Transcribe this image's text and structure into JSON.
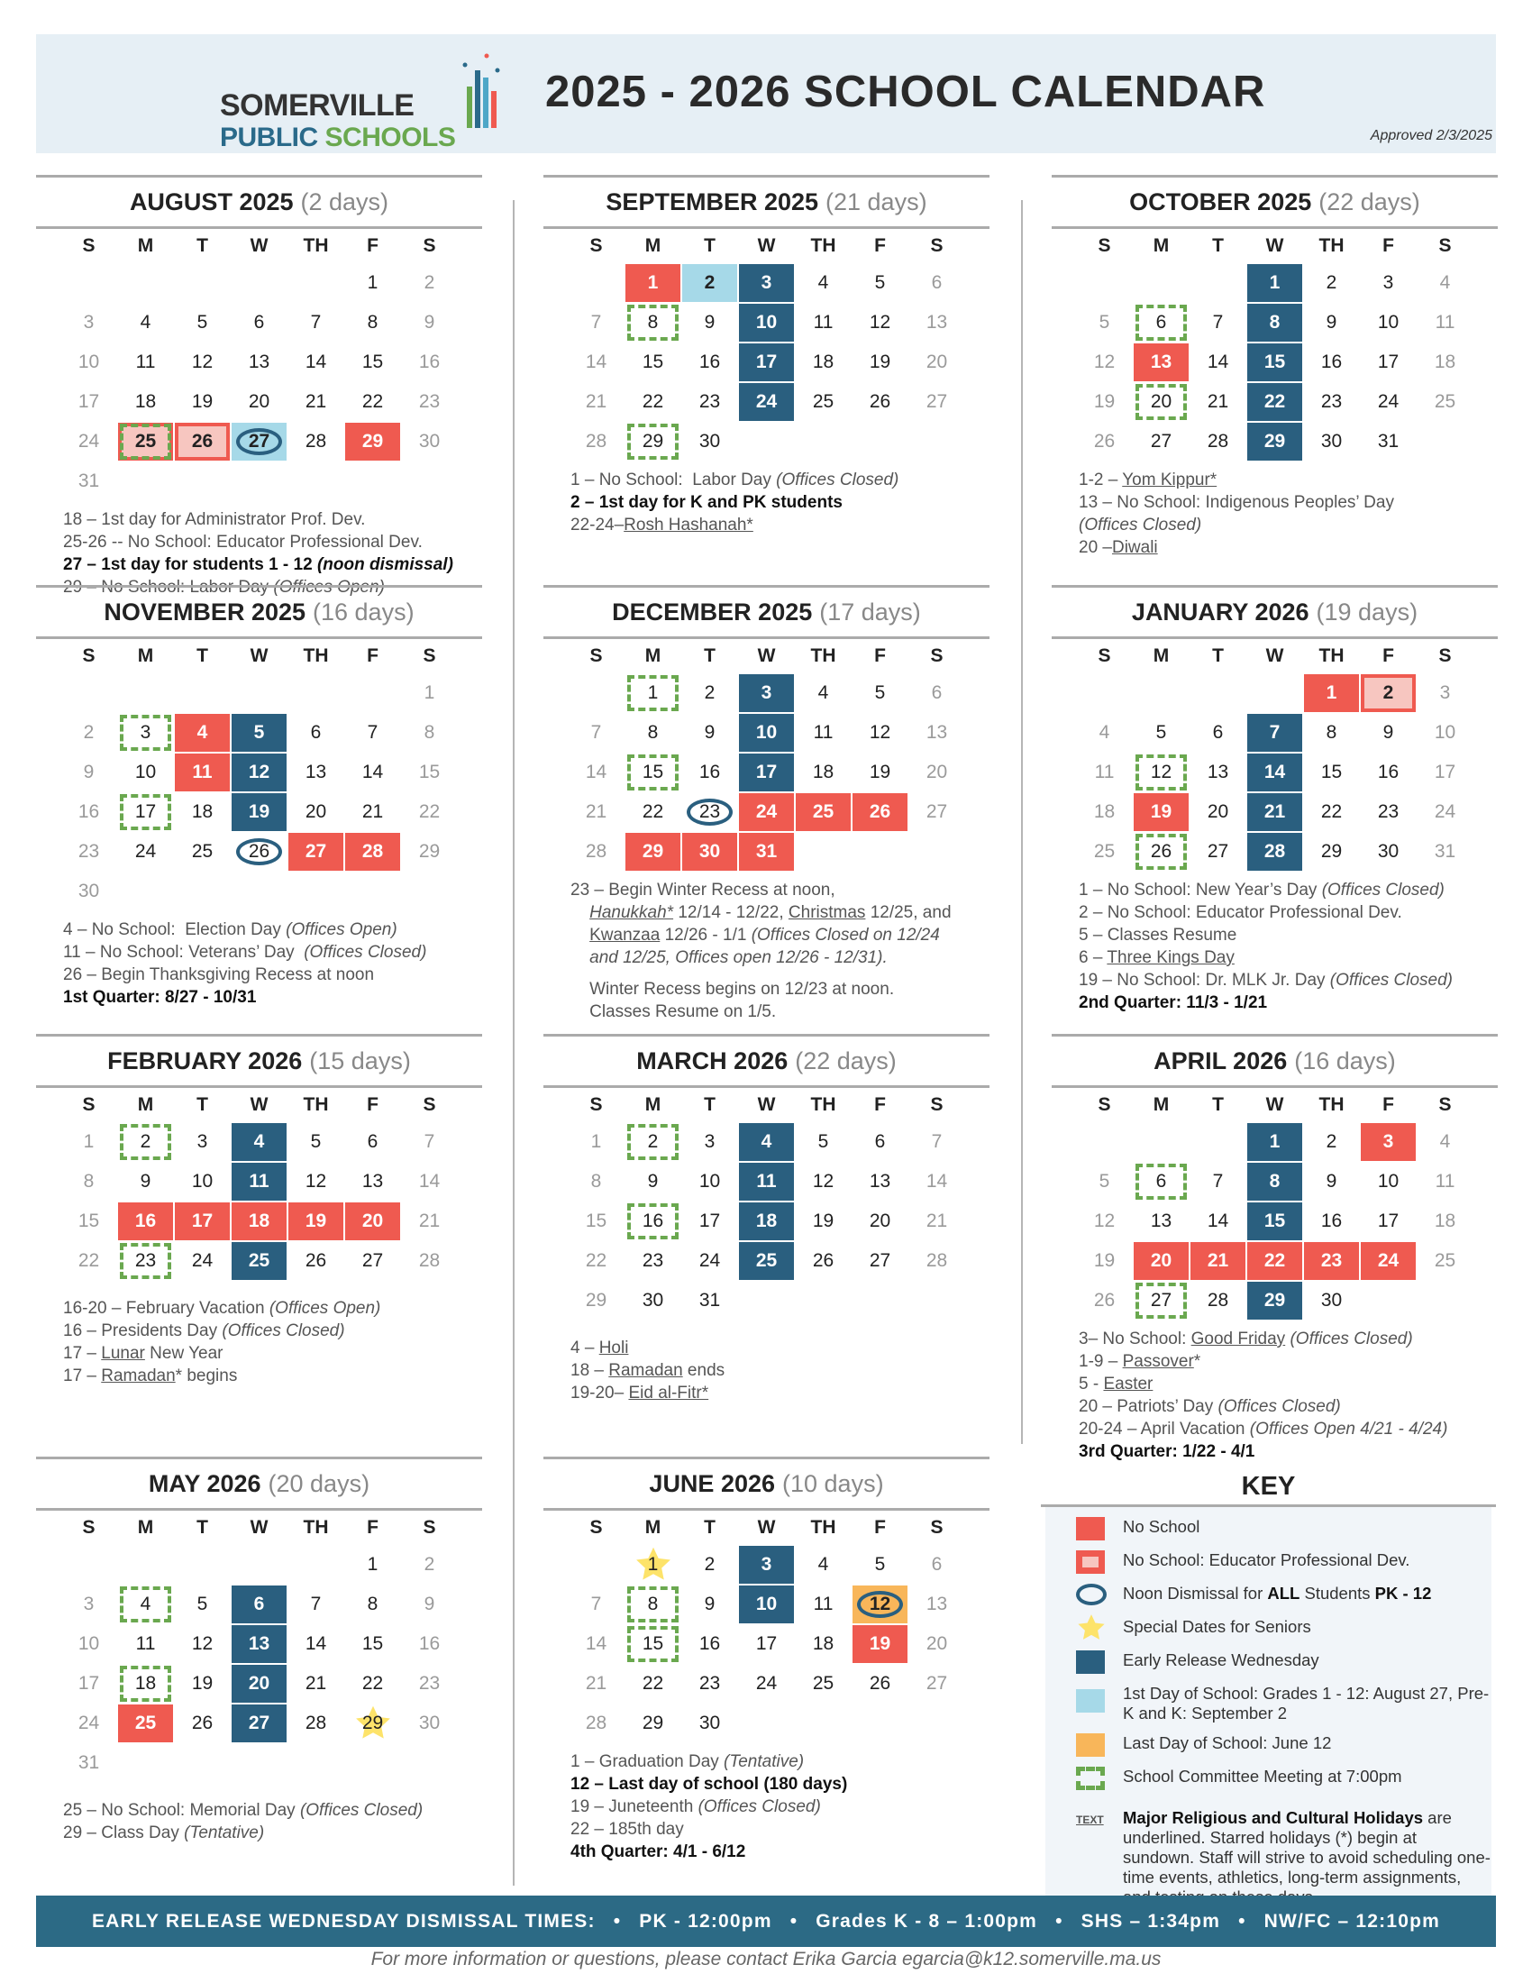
{
  "header": {
    "logo_line1": "SOMERVILLE",
    "logo_public": "PUBLIC",
    "logo_schools": "SCHOOLS",
    "title": "2025 - 2026 SCHOOL CALENDAR",
    "approved": "Approved 2/3/2025"
  },
  "weekdays": [
    "S",
    "M",
    "T",
    "W",
    "TH",
    "F",
    "S"
  ],
  "colors": {
    "no_school": "#ef5a50",
    "pd": "#f7c6c0",
    "early_release": "#2a5f7f",
    "first_day": "#a6d9e8",
    "last_day": "#f8b65a",
    "committee": "#6aa84f",
    "star": "#fde36a"
  },
  "months": [
    {
      "name": "AUGUST 2025",
      "days": "(2 days)",
      "start": 5,
      "length": 31,
      "marks": {
        "25": [
          "pd",
          "sc"
        ],
        "26": [
          "pd"
        ],
        "27": [
          "first",
          "ring"
        ],
        "29": [
          "no"
        ]
      },
      "notes": [
        [
          [
            "18 – 1st day for Administrator Prof. Dev.",
            ""
          ]
        ],
        [
          [
            "25-26 -- No School: Educator Professional Dev.",
            ""
          ]
        ],
        [
          [
            "27 – 1st day for students 1 - 12 ",
            "b"
          ],
          [
            "(noon dismissal)",
            "b i"
          ]
        ],
        [
          [
            "29 – No School: Labor Day ",
            ""
          ],
          [
            "(Offices Open)",
            "i"
          ]
        ]
      ]
    },
    {
      "name": "SEPTEMBER 2025",
      "days": "(21 days)",
      "start": 1,
      "length": 30,
      "marks": {
        "1": [
          "no"
        ],
        "2": [
          "first"
        ],
        "3": [
          "er"
        ],
        "10": [
          "er"
        ],
        "17": [
          "er"
        ],
        "24": [
          "er"
        ],
        "8": [
          "sc"
        ],
        "29": [
          "sc"
        ]
      },
      "notes": [
        [
          [
            "1 – No School:  Labor Day ",
            ""
          ],
          [
            "(Offices Closed)",
            "i"
          ]
        ],
        [
          [
            "2 – 1st day for K and PK students",
            "b"
          ]
        ],
        [
          [
            "22-24–",
            ""
          ],
          [
            "Rosh Hashanah*",
            "u"
          ]
        ]
      ]
    },
    {
      "name": "OCTOBER 2025",
      "days": "(22 days)",
      "start": 3,
      "length": 31,
      "marks": {
        "1": [
          "er"
        ],
        "8": [
          "er"
        ],
        "15": [
          "er"
        ],
        "22": [
          "er"
        ],
        "29": [
          "er"
        ],
        "6": [
          "sc"
        ],
        "13": [
          "no"
        ],
        "20": [
          "sc"
        ]
      },
      "notes": [
        [
          [
            "1-2 – ",
            ""
          ],
          [
            "Yom Kippur*",
            "u"
          ]
        ],
        [
          [
            "13 – No School: Indigenous Peoples’ Day",
            ""
          ]
        ],
        [
          [
            "(Offices Closed)",
            "i"
          ]
        ],
        [
          [
            "20 –",
            ""
          ],
          [
            "Diwali",
            "u"
          ]
        ]
      ]
    },
    {
      "name": "NOVEMBER 2025",
      "days": "(16 days)",
      "start": 6,
      "length": 30,
      "marks": {
        "3": [
          "sc"
        ],
        "4": [
          "no"
        ],
        "5": [
          "er"
        ],
        "11": [
          "no"
        ],
        "12": [
          "er"
        ],
        "17": [
          "sc"
        ],
        "19": [
          "er"
        ],
        "26": [
          "ring"
        ],
        "27": [
          "no"
        ],
        "28": [
          "no"
        ]
      },
      "notes": [
        [
          [
            "4 – No School:  Election Day ",
            ""
          ],
          [
            "(Offices Open)",
            "i"
          ]
        ],
        [
          [
            "11 – No School: Veterans’ Day  ",
            ""
          ],
          [
            "(Offices Closed)",
            "i"
          ]
        ],
        [
          [
            "26 – Begin Thanksgiving Recess at noon",
            ""
          ]
        ],
        [
          [
            "1st Quarter: 8/27 - 10/31",
            "b"
          ]
        ]
      ]
    },
    {
      "name": "DECEMBER 2025",
      "days": "(17 days)",
      "start": 1,
      "length": 31,
      "marks": {
        "1": [
          "sc"
        ],
        "3": [
          "er"
        ],
        "10": [
          "er"
        ],
        "17": [
          "er"
        ],
        "15": [
          "sc"
        ],
        "23": [
          "ring"
        ],
        "24": [
          "no"
        ],
        "25": [
          "no"
        ],
        "26": [
          "no"
        ],
        "29": [
          "no"
        ],
        "30": [
          "no"
        ],
        "31": [
          "no"
        ]
      },
      "notes": [
        [
          [
            "23 – Begin Winter Recess at noon,",
            ""
          ]
        ],
        [
          [
            "    ",
            ""
          ],
          [
            "Hanukkah*",
            "u i"
          ],
          [
            " 12/14 - 12/22, ",
            ""
          ],
          [
            "Christmas",
            "u"
          ],
          [
            " 12/25, and",
            ""
          ]
        ],
        [
          [
            "    ",
            ""
          ],
          [
            "Kwanzaa",
            "u"
          ],
          [
            " 12/26 - 1/1 ",
            ""
          ],
          [
            "(Offices Closed on 12/24",
            "i"
          ]
        ],
        [
          [
            "    ",
            ""
          ],
          [
            "and 12/25, Offices open 12/26 - 12/31).",
            "i"
          ]
        ],
        [
          [
            "",
            ""
          ]
        ],
        [
          [
            "    Winter Recess begins on 12/23 at noon.",
            ""
          ]
        ],
        [
          [
            "    Classes Resume on 1/5.",
            ""
          ]
        ]
      ]
    },
    {
      "name": "JANUARY 2026",
      "days": "(19 days)",
      "start": 4,
      "length": 31,
      "marks": {
        "1": [
          "no"
        ],
        "2": [
          "pd"
        ],
        "7": [
          "er"
        ],
        "14": [
          "er"
        ],
        "21": [
          "er"
        ],
        "28": [
          "er"
        ],
        "12": [
          "sc"
        ],
        "19": [
          "no"
        ],
        "26": [
          "sc"
        ]
      },
      "notes": [
        [
          [
            "1 – No School: New Year’s Day ",
            ""
          ],
          [
            "(Offices Closed)",
            "i"
          ]
        ],
        [
          [
            "2 – No School: Educator Professional Dev.",
            ""
          ]
        ],
        [
          [
            "5 – Classes Resume",
            ""
          ]
        ],
        [
          [
            "6 – ",
            ""
          ],
          [
            "Three Kings Day",
            "u"
          ]
        ],
        [
          [
            "19 – No School: Dr. MLK Jr. Day ",
            ""
          ],
          [
            "(Offices Closed)",
            "i"
          ]
        ],
        [
          [
            "2nd Quarter: 11/3 - 1/21",
            "b"
          ]
        ]
      ]
    },
    {
      "name": "FEBRUARY 2026",
      "days": "(15 days)",
      "start": 0,
      "length": 28,
      "marks": {
        "2": [
          "sc"
        ],
        "4": [
          "er"
        ],
        "11": [
          "er"
        ],
        "25": [
          "er"
        ],
        "16": [
          "no"
        ],
        "17": [
          "no"
        ],
        "18": [
          "no"
        ],
        "19": [
          "no"
        ],
        "20": [
          "no"
        ],
        "23": [
          "sc"
        ]
      },
      "notes": [
        [
          [
            "",
            ""
          ]
        ],
        [
          [
            "16-20 – February Vacation ",
            ""
          ],
          [
            "(Offices Open)",
            "i"
          ]
        ],
        [
          [
            "16 – Presidents Day ",
            ""
          ],
          [
            "(Offices Closed)",
            "i"
          ]
        ],
        [
          [
            "17 – ",
            ""
          ],
          [
            "Lunar",
            "u"
          ],
          [
            " New Year",
            ""
          ]
        ],
        [
          [
            "17 – ",
            ""
          ],
          [
            "Ramadan",
            "u"
          ],
          [
            "* begins",
            ""
          ]
        ]
      ]
    },
    {
      "name": "MARCH 2026",
      "days": "(22 days)",
      "start": 0,
      "length": 31,
      "marks": {
        "2": [
          "sc"
        ],
        "4": [
          "er"
        ],
        "11": [
          "er"
        ],
        "18": [
          "er"
        ],
        "25": [
          "er"
        ],
        "16": [
          "sc"
        ]
      },
      "notes": [
        [
          [
            "",
            ""
          ]
        ],
        [
          [
            "4 – ",
            ""
          ],
          [
            "Holi",
            "u"
          ]
        ],
        [
          [
            "18 – ",
            ""
          ],
          [
            "Ramadan",
            "u"
          ],
          [
            " ends",
            ""
          ]
        ],
        [
          [
            "19-20– ",
            ""
          ],
          [
            "Eid al-Fitr*",
            "u"
          ]
        ]
      ]
    },
    {
      "name": "APRIL 2026",
      "days": "(16 days)",
      "start": 3,
      "length": 30,
      "marks": {
        "1": [
          "er"
        ],
        "8": [
          "er"
        ],
        "15": [
          "er"
        ],
        "29": [
          "er"
        ],
        "3": [
          "no"
        ],
        "6": [
          "sc"
        ],
        "20": [
          "no"
        ],
        "21": [
          "no"
        ],
        "22": [
          "no"
        ],
        "23": [
          "no"
        ],
        "24": [
          "no"
        ],
        "27": [
          "sc"
        ]
      },
      "notes": [
        [
          [
            "3– No School: ",
            ""
          ],
          [
            "Good Friday",
            "u"
          ],
          [
            " ",
            ""
          ],
          [
            "(Offices Closed)",
            "i"
          ]
        ],
        [
          [
            "1-9 – ",
            ""
          ],
          [
            "Passover",
            "u"
          ],
          [
            "*",
            ""
          ]
        ],
        [
          [
            "5 - ",
            ""
          ],
          [
            "Easter",
            "u"
          ]
        ],
        [
          [
            "20 – Patriots’ Day ",
            ""
          ],
          [
            "(Offices Closed)",
            "i"
          ]
        ],
        [
          [
            "20-24 – April Vacation ",
            ""
          ],
          [
            "(Offices Open 4/21 - 4/24)",
            "i"
          ]
        ],
        [
          [
            "3rd Quarter: 1/22 - 4/1",
            "b"
          ]
        ]
      ]
    },
    {
      "name": "MAY 2026",
      "days": "(20 days)",
      "start": 5,
      "length": 31,
      "marks": {
        "4": [
          "sc"
        ],
        "6": [
          "er"
        ],
        "13": [
          "er"
        ],
        "20": [
          "er"
        ],
        "27": [
          "er"
        ],
        "18": [
          "sc"
        ],
        "25": [
          "no"
        ],
        "29": [
          "star"
        ]
      },
      "notes": [
        [
          [
            "",
            ""
          ]
        ],
        [
          [
            "25 – No School: Memorial Day ",
            ""
          ],
          [
            "(Offices Closed)",
            "i"
          ]
        ],
        [
          [
            "29 – Class Day ",
            ""
          ],
          [
            "(Tentative)",
            "i"
          ]
        ]
      ]
    },
    {
      "name": "JUNE 2026",
      "days": "(10 days)",
      "start": 1,
      "length": 30,
      "marks": {
        "1": [
          "star"
        ],
        "3": [
          "er"
        ],
        "10": [
          "er"
        ],
        "8": [
          "sc"
        ],
        "15": [
          "sc"
        ],
        "12": [
          "last",
          "ring"
        ],
        "19": [
          "no"
        ]
      },
      "notes": [
        [
          [
            "1 – Graduation Day ",
            ""
          ],
          [
            "(Tentative)",
            "i"
          ]
        ],
        [
          [
            "12 – Last day of school (180 days)",
            "b"
          ]
        ],
        [
          [
            "19 – Juneteenth ",
            ""
          ],
          [
            "(Offices Closed)",
            "i"
          ]
        ],
        [
          [
            "22 – 185th day",
            ""
          ]
        ],
        [
          [
            "4th Quarter: 4/1 - 6/12",
            "b"
          ]
        ]
      ]
    }
  ],
  "key": {
    "title": "KEY",
    "items": [
      {
        "icon": "no-school-swatch",
        "text": [
          [
            "No School",
            ""
          ]
        ]
      },
      {
        "icon": "pd-swatch",
        "text": [
          [
            "No School: Educator Professional Dev.",
            ""
          ]
        ]
      },
      {
        "icon": "noon-ring",
        "text": [
          [
            "Noon Dismissal for ",
            ""
          ],
          [
            "ALL",
            "b"
          ],
          [
            " Students ",
            ""
          ],
          [
            "PK - 12",
            "b"
          ]
        ]
      },
      {
        "icon": "star",
        "text": [
          [
            "Special Dates for Seniors",
            ""
          ]
        ]
      },
      {
        "icon": "early-release-swatch",
        "text": [
          [
            "Early Release Wednesday",
            ""
          ]
        ]
      },
      {
        "icon": "first-day-swatch",
        "text": [
          [
            "1st Day of School: Grades 1 - 12: August 27, Pre-K and K: September 2",
            ""
          ]
        ]
      },
      {
        "icon": "last-day-swatch",
        "text": [
          [
            "Last Day of School: June 12",
            ""
          ]
        ]
      },
      {
        "icon": "committee-box",
        "text": [
          [
            "School Committee Meeting at 7:00pm",
            ""
          ]
        ]
      },
      {
        "icon": "underline-text",
        "label": "TEXT",
        "text": [
          [
            "Major Religious and Cultural Holidays",
            "b"
          ],
          [
            " are underlined. Starred holidays (*) begin at sundown. Staff will strive to avoid scheduling one-time events, athletics, long-term assignments, and testing on these days.",
            ""
          ]
        ]
      }
    ]
  },
  "footer": {
    "label": "EARLY RELEASE WEDNESDAY DISMISSAL TIMES:",
    "times": [
      "PK - 12:00pm",
      "Grades K - 8 – 1:00pm",
      "SHS – 1:34pm",
      "NW/FC – 12:10pm"
    ],
    "contact": "For more information or questions, please contact Erika Garcia egarcia@k12.somerville.ma.us"
  }
}
